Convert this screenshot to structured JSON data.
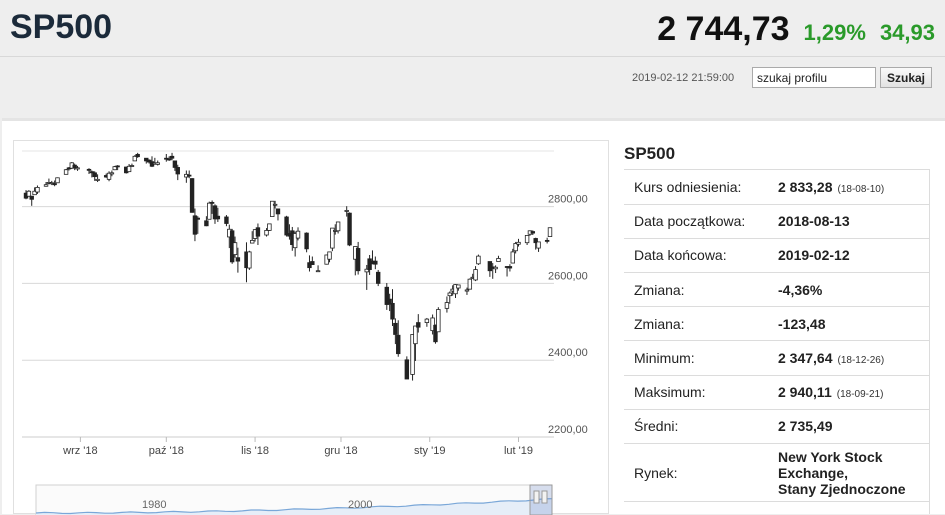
{
  "header": {
    "symbol": "SP500",
    "price": "2 744,73",
    "change_pct": "1,29%",
    "change_abs": "34,93",
    "timestamp": "2019-02-12 21:59:00"
  },
  "search": {
    "value": "szukaj profilu",
    "button_label": "Szukaj"
  },
  "info": {
    "title": "SP500",
    "rows": [
      {
        "label": "Kurs odniesienia:",
        "value": "2 833,28",
        "note": "(18-08-10)"
      },
      {
        "label": "Data początkowa:",
        "value": "2018-08-13",
        "note": ""
      },
      {
        "label": "Data końcowa:",
        "value": "2019-02-12",
        "note": ""
      },
      {
        "label": "Zmiana:",
        "value": "-4,36%",
        "note": ""
      },
      {
        "label": "Zmiana:",
        "value": "-123,48",
        "note": ""
      },
      {
        "label": "Minimum:",
        "value": "2 347,64",
        "note": "(18-12-26)"
      },
      {
        "label": "Maksimum:",
        "value": "2 940,11",
        "note": "(18-09-21)"
      },
      {
        "label": "Średni:",
        "value": "2 735,49",
        "note": ""
      }
    ],
    "market": {
      "label": "Rynek:",
      "lines": [
        "New York Stock",
        "Exchange,",
        "Stany Zjednoczone"
      ]
    }
  },
  "colors": {
    "up": "#ffffff",
    "down": "#222222",
    "accent_green": "#2a9a2a",
    "navigator_line": "#7aa7d8"
  },
  "chart_data": {
    "type": "candlestick",
    "ylim": [
      2200,
      2950
    ],
    "yticks": [
      "2800,00",
      "2600,00",
      "2400,00",
      "2200,00"
    ],
    "ytick_values": [
      2800,
      2600,
      2400,
      2200
    ],
    "xticks": [
      {
        "date": "2018-09-01",
        "label": "wrz '18"
      },
      {
        "date": "2018-10-01",
        "label": "paź '18"
      },
      {
        "date": "2018-11-01",
        "label": "lis '18"
      },
      {
        "date": "2018-12-01",
        "label": "gru '18"
      },
      {
        "date": "2019-01-01",
        "label": "sty '19"
      },
      {
        "date": "2019-02-01",
        "label": "lut '19"
      }
    ],
    "xrange": [
      "2018-08-13",
      "2019-02-12"
    ],
    "navigator_labels": [
      "1980",
      "2000"
    ],
    "candles": [
      {
        "date": "2018-08-13",
        "o": 2835,
        "h": 2843,
        "l": 2819,
        "c": 2822
      },
      {
        "date": "2018-08-14",
        "o": 2827,
        "h": 2843,
        "l": 2826,
        "c": 2840
      },
      {
        "date": "2018-08-15",
        "o": 2827,
        "h": 2828,
        "l": 2802,
        "c": 2819
      },
      {
        "date": "2018-08-16",
        "o": 2831,
        "h": 2850,
        "l": 2831,
        "c": 2840
      },
      {
        "date": "2018-08-17",
        "o": 2838,
        "h": 2855,
        "l": 2833,
        "c": 2850
      },
      {
        "date": "2018-08-20",
        "o": 2853,
        "h": 2864,
        "l": 2852,
        "c": 2857
      },
      {
        "date": "2018-08-21",
        "o": 2861,
        "h": 2873,
        "l": 2858,
        "c": 2863
      },
      {
        "date": "2018-08-22",
        "o": 2860,
        "h": 2867,
        "l": 2856,
        "c": 2862
      },
      {
        "date": "2018-08-23",
        "o": 2860,
        "h": 2868,
        "l": 2853,
        "c": 2857
      },
      {
        "date": "2018-08-24",
        "o": 2862,
        "h": 2876,
        "l": 2862,
        "c": 2875
      },
      {
        "date": "2018-08-27",
        "o": 2884,
        "h": 2898,
        "l": 2884,
        "c": 2896
      },
      {
        "date": "2018-08-28",
        "o": 2901,
        "h": 2903,
        "l": 2894,
        "c": 2898
      },
      {
        "date": "2018-08-29",
        "o": 2900,
        "h": 2916,
        "l": 2898,
        "c": 2914
      },
      {
        "date": "2018-08-30",
        "o": 2908,
        "h": 2912,
        "l": 2895,
        "c": 2901
      },
      {
        "date": "2018-08-31",
        "o": 2898,
        "h": 2906,
        "l": 2893,
        "c": 2901
      },
      {
        "date": "2018-09-04",
        "o": 2897,
        "h": 2900,
        "l": 2885,
        "c": 2896
      },
      {
        "date": "2018-09-05",
        "o": 2891,
        "h": 2894,
        "l": 2876,
        "c": 2888
      },
      {
        "date": "2018-09-06",
        "o": 2888,
        "h": 2892,
        "l": 2867,
        "c": 2878
      },
      {
        "date": "2018-09-07",
        "o": 2868,
        "h": 2884,
        "l": 2864,
        "c": 2871
      },
      {
        "date": "2018-09-10",
        "o": 2881,
        "h": 2886,
        "l": 2875,
        "c": 2877
      },
      {
        "date": "2018-09-11",
        "o": 2871,
        "h": 2892,
        "l": 2866,
        "c": 2887
      },
      {
        "date": "2018-09-12",
        "o": 2885,
        "h": 2894,
        "l": 2879,
        "c": 2888
      },
      {
        "date": "2018-09-13",
        "o": 2896,
        "h": 2906,
        "l": 2895,
        "c": 2904
      },
      {
        "date": "2018-09-14",
        "o": 2906,
        "h": 2908,
        "l": 2895,
        "c": 2904
      },
      {
        "date": "2018-09-17",
        "o": 2903,
        "h": 2904,
        "l": 2886,
        "c": 2888
      },
      {
        "date": "2018-09-18",
        "o": 2891,
        "h": 2911,
        "l": 2890,
        "c": 2905
      },
      {
        "date": "2018-09-19",
        "o": 2906,
        "h": 2912,
        "l": 2903,
        "c": 2907
      },
      {
        "date": "2018-09-20",
        "o": 2919,
        "h": 2934,
        "l": 2919,
        "c": 2931
      },
      {
        "date": "2018-09-21",
        "o": 2936,
        "h": 2940,
        "l": 2927,
        "c": 2930
      },
      {
        "date": "2018-09-24",
        "o": 2926,
        "h": 2926,
        "l": 2912,
        "c": 2919
      },
      {
        "date": "2018-09-25",
        "o": 2921,
        "h": 2923,
        "l": 2912,
        "c": 2916
      },
      {
        "date": "2018-09-26",
        "o": 2917,
        "h": 2931,
        "l": 2903,
        "c": 2905
      },
      {
        "date": "2018-09-27",
        "o": 2911,
        "h": 2927,
        "l": 2909,
        "c": 2914
      },
      {
        "date": "2018-09-28",
        "o": 2910,
        "h": 2920,
        "l": 2907,
        "c": 2914
      },
      {
        "date": "2018-10-01",
        "o": 2926,
        "h": 2937,
        "l": 2917,
        "c": 2924
      },
      {
        "date": "2018-10-02",
        "o": 2924,
        "h": 2931,
        "l": 2919,
        "c": 2923
      },
      {
        "date": "2018-10-03",
        "o": 2931,
        "h": 2940,
        "l": 2921,
        "c": 2926
      },
      {
        "date": "2018-10-04",
        "o": 2919,
        "h": 2920,
        "l": 2893,
        "c": 2902
      },
      {
        "date": "2018-10-05",
        "o": 2902,
        "h": 2909,
        "l": 2869,
        "c": 2885
      },
      {
        "date": "2018-10-08",
        "o": 2877,
        "h": 2894,
        "l": 2862,
        "c": 2884
      },
      {
        "date": "2018-10-09",
        "o": 2882,
        "h": 2894,
        "l": 2874,
        "c": 2881
      },
      {
        "date": "2018-10-10",
        "o": 2873,
        "h": 2874,
        "l": 2784,
        "c": 2785
      },
      {
        "date": "2018-10-11",
        "o": 2776,
        "h": 2795,
        "l": 2710,
        "c": 2728
      },
      {
        "date": "2018-10-12",
        "o": 2770,
        "h": 2775,
        "l": 2729,
        "c": 2767
      },
      {
        "date": "2018-10-15",
        "o": 2763,
        "h": 2775,
        "l": 2749,
        "c": 2750
      },
      {
        "date": "2018-10-16",
        "o": 2767,
        "h": 2813,
        "l": 2767,
        "c": 2809
      },
      {
        "date": "2018-10-17",
        "o": 2811,
        "h": 2816,
        "l": 2781,
        "c": 2809
      },
      {
        "date": "2018-10-18",
        "o": 2802,
        "h": 2806,
        "l": 2755,
        "c": 2768
      },
      {
        "date": "2018-10-19",
        "o": 2775,
        "h": 2797,
        "l": 2760,
        "c": 2768
      },
      {
        "date": "2018-10-22",
        "o": 2773,
        "h": 2778,
        "l": 2749,
        "c": 2756
      },
      {
        "date": "2018-10-23",
        "o": 2721,
        "h": 2753,
        "l": 2692,
        "c": 2741
      },
      {
        "date": "2018-10-24",
        "o": 2737,
        "h": 2742,
        "l": 2651,
        "c": 2656
      },
      {
        "date": "2018-10-25",
        "o": 2675,
        "h": 2722,
        "l": 2667,
        "c": 2706
      },
      {
        "date": "2018-10-26",
        "o": 2667,
        "h": 2693,
        "l": 2628,
        "c": 2658
      },
      {
        "date": "2018-10-29",
        "o": 2682,
        "h": 2707,
        "l": 2603,
        "c": 2641
      },
      {
        "date": "2018-10-30",
        "o": 2640,
        "h": 2685,
        "l": 2635,
        "c": 2682
      },
      {
        "date": "2018-10-31",
        "o": 2705,
        "h": 2736,
        "l": 2705,
        "c": 2712
      },
      {
        "date": "2018-11-01",
        "o": 2717,
        "h": 2741,
        "l": 2709,
        "c": 2740
      },
      {
        "date": "2018-11-02",
        "o": 2745,
        "h": 2756,
        "l": 2700,
        "c": 2723
      },
      {
        "date": "2018-11-05",
        "o": 2726,
        "h": 2744,
        "l": 2722,
        "c": 2738
      },
      {
        "date": "2018-11-06",
        "o": 2738,
        "h": 2756,
        "l": 2737,
        "c": 2755
      },
      {
        "date": "2018-11-07",
        "o": 2774,
        "h": 2814,
        "l": 2774,
        "c": 2814
      },
      {
        "date": "2018-11-08",
        "o": 2806,
        "h": 2815,
        "l": 2795,
        "c": 2806
      },
      {
        "date": "2018-11-09",
        "o": 2794,
        "h": 2794,
        "l": 2764,
        "c": 2781
      },
      {
        "date": "2018-11-12",
        "o": 2773,
        "h": 2776,
        "l": 2722,
        "c": 2726
      },
      {
        "date": "2018-11-13",
        "o": 2730,
        "h": 2754,
        "l": 2714,
        "c": 2723
      },
      {
        "date": "2018-11-14",
        "o": 2737,
        "h": 2747,
        "l": 2685,
        "c": 2701
      },
      {
        "date": "2018-11-15",
        "o": 2693,
        "h": 2735,
        "l": 2670,
        "c": 2730
      },
      {
        "date": "2018-11-16",
        "o": 2718,
        "h": 2746,
        "l": 2712,
        "c": 2736
      },
      {
        "date": "2018-11-19",
        "o": 2731,
        "h": 2733,
        "l": 2681,
        "c": 2690
      },
      {
        "date": "2018-11-20",
        "o": 2654,
        "h": 2673,
        "l": 2631,
        "c": 2641
      },
      {
        "date": "2018-11-21",
        "o": 2657,
        "h": 2670,
        "l": 2649,
        "c": 2649
      },
      {
        "date": "2018-11-23",
        "o": 2633,
        "h": 2647,
        "l": 2631,
        "c": 2633
      },
      {
        "date": "2018-11-26",
        "o": 2650,
        "h": 2675,
        "l": 2649,
        "c": 2674
      },
      {
        "date": "2018-11-27",
        "o": 2663,
        "h": 2683,
        "l": 2655,
        "c": 2682
      },
      {
        "date": "2018-11-28",
        "o": 2692,
        "h": 2744,
        "l": 2684,
        "c": 2744
      },
      {
        "date": "2018-11-29",
        "o": 2736,
        "h": 2754,
        "l": 2727,
        "c": 2738
      },
      {
        "date": "2018-11-30",
        "o": 2737,
        "h": 2760,
        "l": 2730,
        "c": 2760
      },
      {
        "date": "2018-12-03",
        "o": 2790,
        "h": 2801,
        "l": 2774,
        "c": 2790
      },
      {
        "date": "2018-12-04",
        "o": 2783,
        "h": 2785,
        "l": 2697,
        "c": 2700
      },
      {
        "date": "2018-12-06",
        "o": 2663,
        "h": 2696,
        "l": 2621,
        "c": 2696
      },
      {
        "date": "2018-12-07",
        "o": 2691,
        "h": 2708,
        "l": 2623,
        "c": 2633
      },
      {
        "date": "2018-12-10",
        "o": 2630,
        "h": 2648,
        "l": 2583,
        "c": 2637
      },
      {
        "date": "2018-12-11",
        "o": 2664,
        "h": 2674,
        "l": 2622,
        "c": 2636
      },
      {
        "date": "2018-12-12",
        "o": 2658,
        "h": 2686,
        "l": 2650,
        "c": 2651
      },
      {
        "date": "2018-12-13",
        "o": 2658,
        "h": 2670,
        "l": 2637,
        "c": 2650
      },
      {
        "date": "2018-12-14",
        "o": 2629,
        "h": 2635,
        "l": 2593,
        "c": 2600
      },
      {
        "date": "2018-12-17",
        "o": 2590,
        "h": 2601,
        "l": 2531,
        "c": 2545
      },
      {
        "date": "2018-12-18",
        "o": 2559,
        "h": 2573,
        "l": 2528,
        "c": 2546
      },
      {
        "date": "2018-12-19",
        "o": 2548,
        "h": 2585,
        "l": 2489,
        "c": 2507
      },
      {
        "date": "2018-12-20",
        "o": 2496,
        "h": 2509,
        "l": 2442,
        "c": 2467
      },
      {
        "date": "2018-12-21",
        "o": 2465,
        "h": 2504,
        "l": 2409,
        "c": 2417
      },
      {
        "date": "2018-12-24",
        "o": 2401,
        "h": 2410,
        "l": 2351,
        "c": 2351
      },
      {
        "date": "2018-12-26",
        "o": 2363,
        "h": 2467,
        "l": 2347,
        "c": 2467
      },
      {
        "date": "2018-12-27",
        "o": 2443,
        "h": 2489,
        "l": 2398,
        "c": 2489
      },
      {
        "date": "2018-12-28",
        "o": 2498,
        "h": 2520,
        "l": 2472,
        "c": 2486
      },
      {
        "date": "2018-12-31",
        "o": 2498,
        "h": 2510,
        "l": 2487,
        "c": 2507
      },
      {
        "date": "2019-01-02",
        "o": 2477,
        "h": 2519,
        "l": 2467,
        "c": 2510
      },
      {
        "date": "2019-01-03",
        "o": 2491,
        "h": 2493,
        "l": 2443,
        "c": 2448
      },
      {
        "date": "2019-01-04",
        "o": 2474,
        "h": 2538,
        "l": 2474,
        "c": 2532
      },
      {
        "date": "2019-01-07",
        "o": 2535,
        "h": 2566,
        "l": 2524,
        "c": 2550
      },
      {
        "date": "2019-01-08",
        "o": 2568,
        "h": 2579,
        "l": 2547,
        "c": 2575
      },
      {
        "date": "2019-01-09",
        "o": 2580,
        "h": 2595,
        "l": 2568,
        "c": 2585
      },
      {
        "date": "2019-01-10",
        "o": 2573,
        "h": 2598,
        "l": 2562,
        "c": 2597
      },
      {
        "date": "2019-01-11",
        "o": 2588,
        "h": 2596,
        "l": 2581,
        "c": 2596
      },
      {
        "date": "2019-01-14",
        "o": 2580,
        "h": 2589,
        "l": 2570,
        "c": 2583
      },
      {
        "date": "2019-01-15",
        "o": 2585,
        "h": 2613,
        "l": 2585,
        "c": 2611
      },
      {
        "date": "2019-01-16",
        "o": 2614,
        "h": 2625,
        "l": 2612,
        "c": 2616
      },
      {
        "date": "2019-01-17",
        "o": 2609,
        "h": 2645,
        "l": 2606,
        "c": 2636
      },
      {
        "date": "2019-01-18",
        "o": 2651,
        "h": 2675,
        "l": 2648,
        "c": 2671
      },
      {
        "date": "2019-01-22",
        "o": 2657,
        "h": 2657,
        "l": 2617,
        "c": 2633
      },
      {
        "date": "2019-01-23",
        "o": 2643,
        "h": 2653,
        "l": 2612,
        "c": 2639
      },
      {
        "date": "2019-01-24",
        "o": 2638,
        "h": 2647,
        "l": 2627,
        "c": 2642
      },
      {
        "date": "2019-01-25",
        "o": 2657,
        "h": 2672,
        "l": 2657,
        "c": 2665
      },
      {
        "date": "2019-01-28",
        "o": 2644,
        "h": 2645,
        "l": 2618,
        "c": 2643
      },
      {
        "date": "2019-01-29",
        "o": 2644,
        "h": 2650,
        "l": 2631,
        "c": 2640
      },
      {
        "date": "2019-01-30",
        "o": 2653,
        "h": 2690,
        "l": 2652,
        "c": 2682
      },
      {
        "date": "2019-01-31",
        "o": 2685,
        "h": 2708,
        "l": 2678,
        "c": 2704
      },
      {
        "date": "2019-02-01",
        "o": 2702,
        "h": 2716,
        "l": 2696,
        "c": 2707
      },
      {
        "date": "2019-02-04",
        "o": 2706,
        "h": 2725,
        "l": 2700,
        "c": 2725
      },
      {
        "date": "2019-02-05",
        "o": 2728,
        "h": 2738,
        "l": 2724,
        "c": 2737
      },
      {
        "date": "2019-02-06",
        "o": 2735,
        "h": 2738,
        "l": 2726,
        "c": 2731
      },
      {
        "date": "2019-02-07",
        "o": 2717,
        "h": 2719,
        "l": 2688,
        "c": 2706
      },
      {
        "date": "2019-02-08",
        "o": 2692,
        "h": 2708,
        "l": 2682,
        "c": 2708
      },
      {
        "date": "2019-02-11",
        "o": 2712,
        "h": 2719,
        "l": 2704,
        "c": 2710
      },
      {
        "date": "2019-02-12",
        "o": 2722,
        "h": 2745,
        "l": 2722,
        "c": 2745
      }
    ]
  }
}
